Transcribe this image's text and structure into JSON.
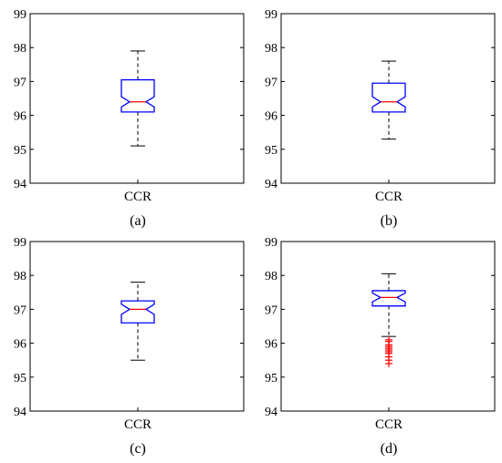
{
  "chart_data": [
    {
      "type": "box",
      "caption": "(a)",
      "categories": [
        "CCR"
      ],
      "ylim": [
        94,
        99
      ],
      "yticks": [
        "94",
        "95",
        "96",
        "97",
        "98",
        "99"
      ],
      "box": {
        "whisker_low": 95.1,
        "q1": 96.1,
        "median": 96.4,
        "q3": 97.05,
        "whisker_high": 97.9,
        "notch_low": 96.25,
        "notch_high": 96.55
      },
      "outliers": []
    },
    {
      "type": "box",
      "caption": "(b)",
      "categories": [
        "CCR"
      ],
      "ylim": [
        94,
        99
      ],
      "yticks": [
        "94",
        "95",
        "96",
        "97",
        "98",
        "99"
      ],
      "box": {
        "whisker_low": 95.3,
        "q1": 96.1,
        "median": 96.4,
        "q3": 96.95,
        "whisker_high": 97.6,
        "notch_low": 96.25,
        "notch_high": 96.55
      },
      "outliers": []
    },
    {
      "type": "box",
      "caption": "(c)",
      "categories": [
        "CCR"
      ],
      "ylim": [
        94,
        99
      ],
      "yticks": [
        "94",
        "95",
        "96",
        "97",
        "98",
        "99"
      ],
      "box": {
        "whisker_low": 95.5,
        "q1": 96.6,
        "median": 97.0,
        "q3": 97.25,
        "whisker_high": 97.8,
        "notch_low": 96.85,
        "notch_high": 97.15
      },
      "outliers": []
    },
    {
      "type": "box",
      "caption": "(d)",
      "categories": [
        "CCR"
      ],
      "ylim": [
        94,
        99
      ],
      "yticks": [
        "94",
        "95",
        "96",
        "97",
        "98",
        "99"
      ],
      "box": {
        "whisker_low": 96.2,
        "q1": 97.1,
        "median": 97.35,
        "q3": 97.55,
        "whisker_high": 98.05,
        "notch_low": 97.22,
        "notch_high": 97.48
      },
      "outliers": [
        96.1,
        96.05,
        95.95,
        95.9,
        95.85,
        95.8,
        95.75,
        95.7,
        95.6,
        95.5,
        95.4
      ]
    }
  ],
  "colors": {
    "box": "#0000ff",
    "median": "#ff0000",
    "whisker": "#000000",
    "outlier": "#ff0000",
    "axes": "#000000"
  }
}
